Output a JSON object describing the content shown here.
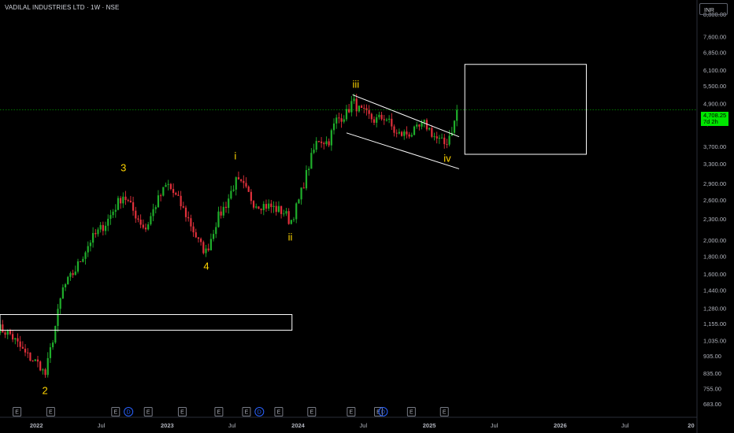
{
  "header": {
    "title": "VADILAL INDUSTRIES LTD · 1W · NSE",
    "currency": "INR"
  },
  "price_tag": {
    "value": "4,708.25",
    "countdown": "7d 2h"
  },
  "colors": {
    "up": "#26a69a",
    "up_bar": "#1fae2b",
    "down": "#e0303b",
    "wave": "#ffd500",
    "guide": "#ffffff",
    "last_price": "#00e600",
    "dividend": "#2962ff"
  },
  "events": {
    "earnings_label": "E",
    "dividend_label": "D",
    "earnings_dates": [
      "2021-11-08",
      "2022-02-10",
      "2022-08-10",
      "2022-11-09",
      "2023-02-12",
      "2023-05-25",
      "2023-08-10",
      "2023-11-08",
      "2024-02-08",
      "2024-05-28",
      "2024-08-12",
      "2024-11-12",
      "2025-02-12"
    ],
    "dividend_dates": [
      "2022-09-15",
      "2023-09-15",
      "2024-08-25"
    ]
  },
  "chart_data": {
    "type": "candlestick",
    "interval": "1W",
    "scale": "log",
    "ylim": [
      650,
      9200
    ],
    "xlim": [
      "2021-09-15",
      "2026-12-31"
    ],
    "y_ticks": [
      "8,800.00",
      "7,600.00",
      "6,850.00",
      "6,100.00",
      "5,500.00",
      "4,900.00",
      "4,300.00",
      "3,700.00",
      "3,300.00",
      "2,900.00",
      "2,600.00",
      "2,300.00",
      "2,000.00",
      "1,800.00",
      "1,600.00",
      "1,440.00",
      "1,280.00",
      "1,155.00",
      "1,035.00",
      "935.00",
      "835.00",
      "755.00",
      "683.00"
    ],
    "x_ticks": [
      {
        "label": "2022",
        "date": "2022-01-01"
      },
      {
        "label": "Jul",
        "date": "2022-07-01"
      },
      {
        "label": "2023",
        "date": "2023-01-01"
      },
      {
        "label": "Jul",
        "date": "2023-07-01"
      },
      {
        "label": "2024",
        "date": "2024-01-01"
      },
      {
        "label": "Jul",
        "date": "2024-07-01"
      },
      {
        "label": "2025",
        "date": "2025-01-01"
      },
      {
        "label": "Jul",
        "date": "2025-07-01"
      },
      {
        "label": "2026",
        "date": "2026-01-01"
      },
      {
        "label": "Jul",
        "date": "2026-07-01"
      },
      {
        "label": "20",
        "date": "2027-01-01"
      }
    ],
    "last_price": 4708.25,
    "price_path": [
      [
        "2021-09-15",
        1130
      ],
      [
        "2021-10-20",
        1080
      ],
      [
        "2021-12-01",
        950
      ],
      [
        "2022-01-12",
        880
      ],
      [
        "2022-01-25",
        820
      ],
      [
        "2022-02-20",
        1100
      ],
      [
        "2022-03-15",
        1450
      ],
      [
        "2022-04-20",
        1650
      ],
      [
        "2022-06-01",
        2000
      ],
      [
        "2022-07-15",
        2250
      ],
      [
        "2022-08-20",
        2600
      ],
      [
        "2022-09-01",
        2700
      ],
      [
        "2022-10-01",
        2400
      ],
      [
        "2022-11-01",
        2150
      ],
      [
        "2022-12-01",
        2550
      ],
      [
        "2023-01-01",
        2900
      ],
      [
        "2023-02-01",
        2600
      ],
      [
        "2023-03-01",
        2300
      ],
      [
        "2023-04-01",
        1950
      ],
      [
        "2023-04-20",
        1850
      ],
      [
        "2023-05-20",
        2300
      ],
      [
        "2023-06-15",
        2550
      ],
      [
        "2023-07-10",
        2950
      ],
      [
        "2023-08-01",
        2850
      ],
      [
        "2023-09-01",
        2550
      ],
      [
        "2023-10-15",
        2500
      ],
      [
        "2023-11-25",
        2400
      ],
      [
        "2023-12-10",
        2250
      ],
      [
        "2024-01-01",
        2550
      ],
      [
        "2024-02-01",
        3300
      ],
      [
        "2024-02-25",
        3900
      ],
      [
        "2024-03-25",
        3800
      ],
      [
        "2024-04-15",
        4400
      ],
      [
        "2024-05-15",
        4600
      ],
      [
        "2024-06-01",
        5000
      ],
      [
        "2024-06-20",
        4700
      ],
      [
        "2024-08-01",
        4400
      ],
      [
        "2024-09-01",
        4500
      ],
      [
        "2024-10-01",
        4000
      ],
      [
        "2024-11-15",
        4050
      ],
      [
        "2024-12-20",
        4300
      ],
      [
        "2025-01-20",
        3900
      ],
      [
        "2025-02-15",
        3750
      ],
      [
        "2025-03-05",
        4150
      ],
      [
        "2025-03-25",
        4708
      ]
    ],
    "wave_labels": [
      {
        "label": "2",
        "date": "2022-01-25",
        "price": 730
      },
      {
        "label": "3",
        "date": "2022-09-01",
        "price": 3150
      },
      {
        "label": "4",
        "date": "2023-04-20",
        "price": 1650
      },
      {
        "label": "i",
        "date": "2023-07-10",
        "price": 3400
      },
      {
        "label": "ii",
        "date": "2023-12-10",
        "price": 2000
      },
      {
        "label": "iii",
        "date": "2024-06-10",
        "price": 5450
      },
      {
        "label": "iv",
        "date": "2025-02-20",
        "price": 3350
      }
    ],
    "channel": {
      "upper": [
        [
          "2024-06-01",
          5200
        ],
        [
          "2025-03-25",
          3950
        ]
      ],
      "lower": [
        [
          "2024-05-15",
          4050
        ],
        [
          "2025-03-25",
          3200
        ]
      ]
    },
    "boxes": [
      {
        "name": "demand-zone",
        "from": "2021-09-15",
        "to": "2023-12-15",
        "top": 1230,
        "bottom": 1110
      },
      {
        "name": "target-zone",
        "from": "2025-04-10",
        "to": "2026-03-15",
        "top": 6350,
        "bottom": 3520
      }
    ]
  }
}
